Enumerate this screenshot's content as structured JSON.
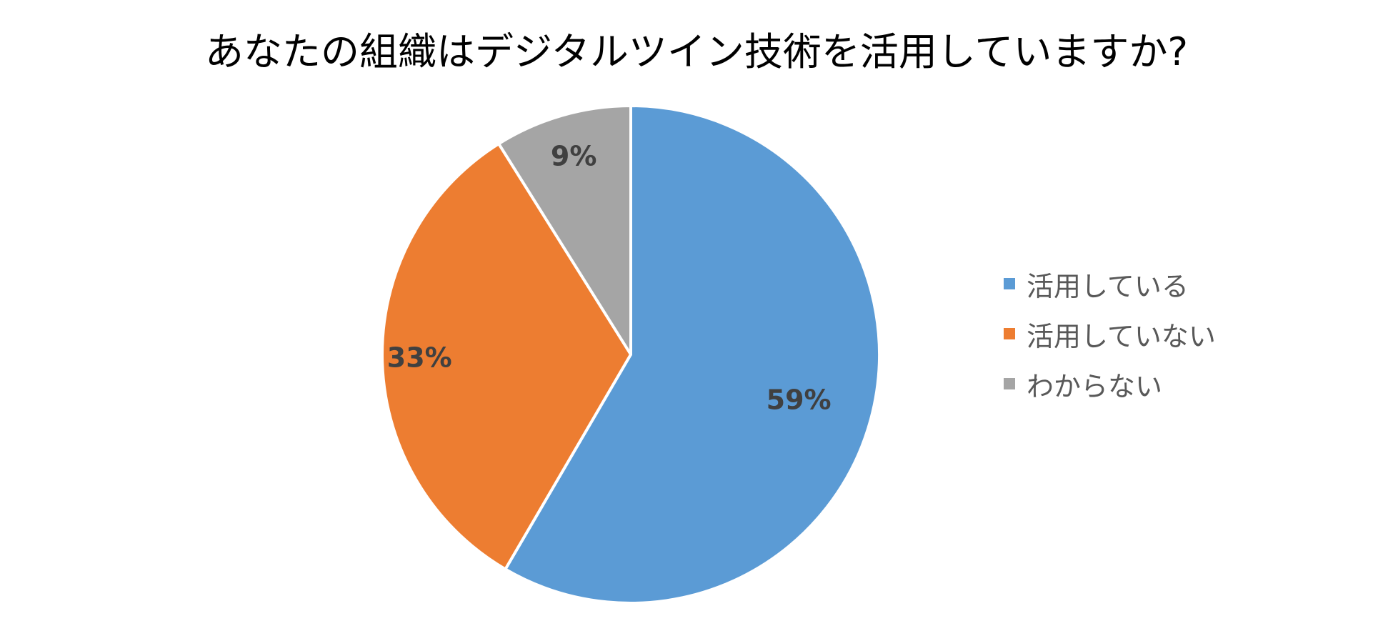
{
  "chart_data": {
    "type": "pie",
    "title": "あなたの組織はデジタルツイン技術を活用していますか?",
    "categories": [
      "活用している",
      "活用していない",
      "わからない"
    ],
    "values": [
      59,
      33,
      9
    ],
    "data_labels": [
      "59%",
      "33%",
      "9%"
    ],
    "colors": [
      "#5B9BD5",
      "#ED7D31",
      "#A5A5A5"
    ],
    "label_color": "#404040",
    "legend_position": "right"
  }
}
